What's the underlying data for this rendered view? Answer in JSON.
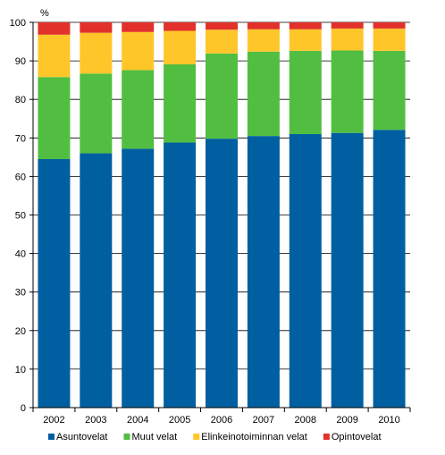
{
  "chart_data": {
    "type": "bar",
    "stacked": true,
    "unit_label": "%",
    "categories": [
      "2002",
      "2003",
      "2004",
      "2005",
      "2006",
      "2007",
      "2008",
      "2009",
      "2010"
    ],
    "ylim": [
      0,
      100
    ],
    "yticks": [
      0,
      10,
      20,
      30,
      40,
      50,
      60,
      70,
      80,
      90,
      100
    ],
    "grid": true,
    "legend_position": "bottom",
    "series": [
      {
        "name": "Asuntovelat",
        "color": "#005fa0",
        "values": [
          64.5,
          66.0,
          67.2,
          68.8,
          69.8,
          70.5,
          71.0,
          71.3,
          72.1
        ]
      },
      {
        "name": "Muut velat",
        "color": "#51be41",
        "values": [
          21.3,
          20.7,
          20.4,
          20.3,
          22.1,
          21.9,
          21.6,
          21.4,
          20.5
        ]
      },
      {
        "name": "Elinkeinotoiminnan velat",
        "color": "#ffc62a",
        "values": [
          11.0,
          10.6,
          9.9,
          8.7,
          6.2,
          5.8,
          5.6,
          5.7,
          5.8
        ]
      },
      {
        "name": "Opintovelat",
        "color": "#e2312b",
        "values": [
          3.2,
          2.7,
          2.5,
          2.2,
          1.9,
          1.8,
          1.8,
          1.6,
          1.6
        ]
      }
    ]
  }
}
